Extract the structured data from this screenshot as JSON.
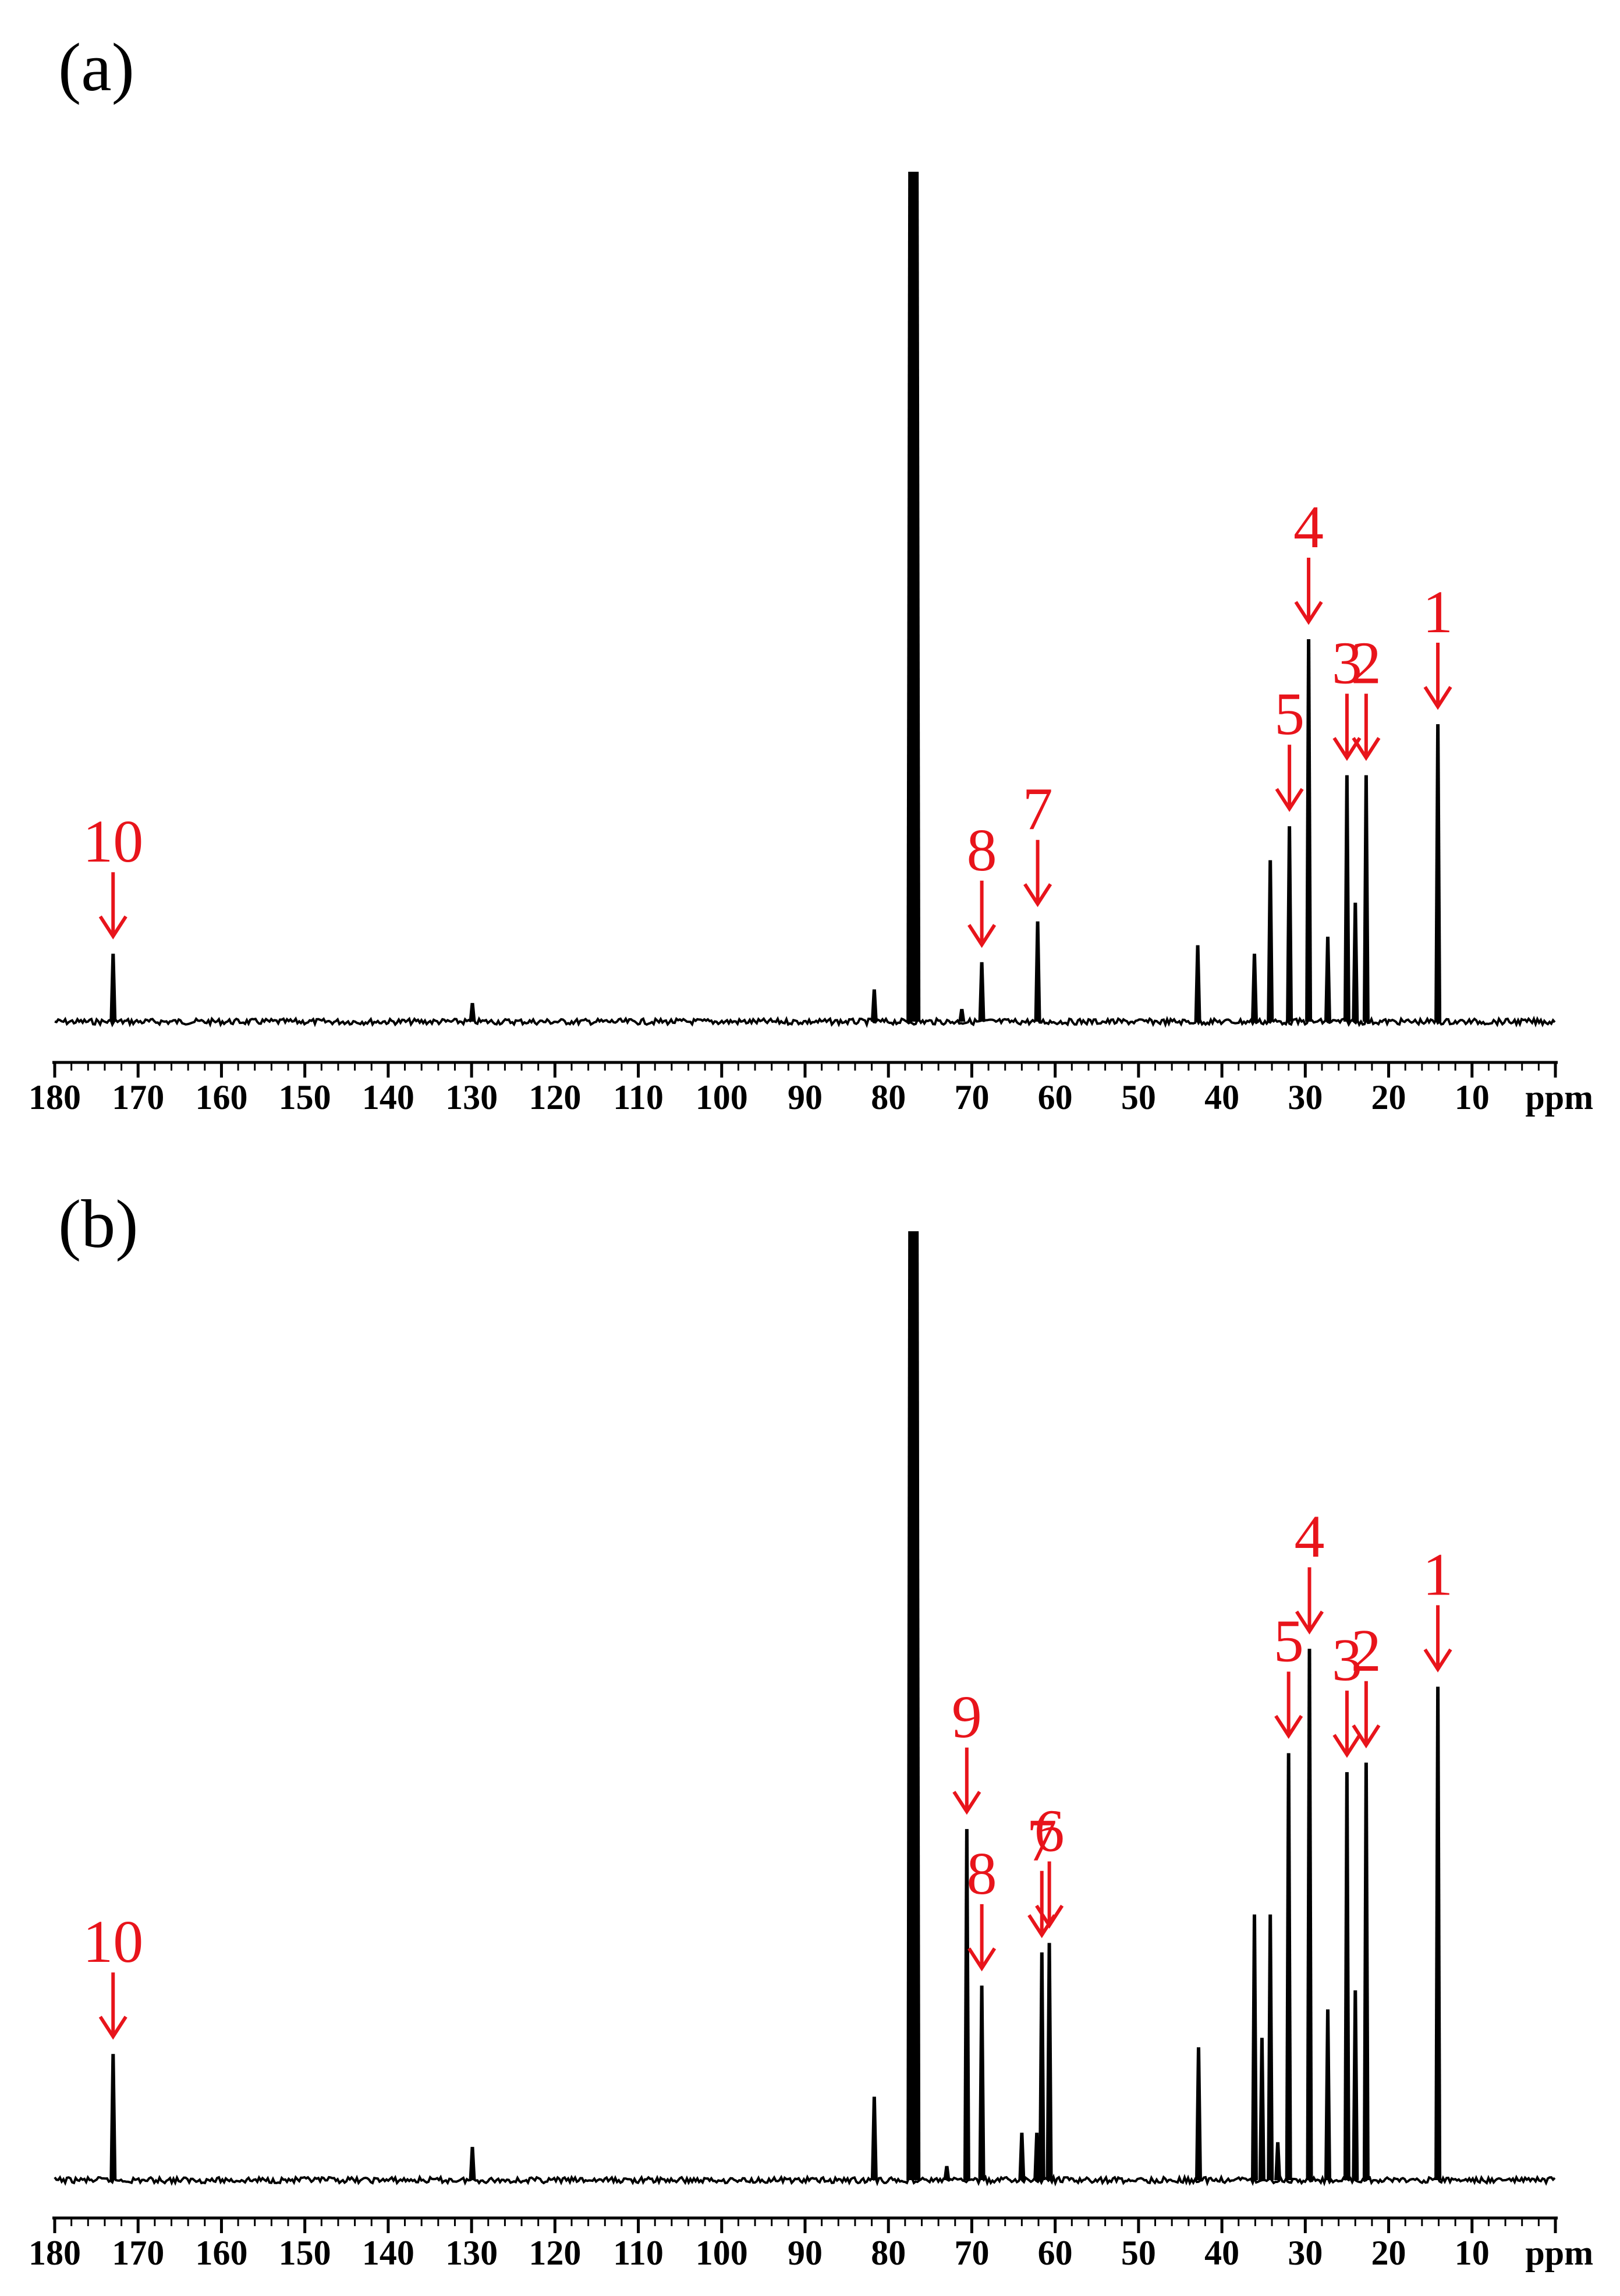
{
  "figure": {
    "colors": {
      "spectrum": "#000000",
      "annotation": "#e8141b",
      "background": "#ffffff"
    }
  },
  "chart_data": [
    {
      "type": "line",
      "panel_label": "(a)",
      "xlabel": "ppm",
      "x_reversed": true,
      "xlim": [
        180,
        0
      ],
      "x_ticks": [
        180,
        170,
        160,
        150,
        140,
        130,
        120,
        110,
        100,
        90,
        80,
        70,
        60,
        50,
        40,
        30,
        20,
        10
      ],
      "x_tick_labels": [
        "180",
        "170",
        "160",
        "150",
        "140",
        "130",
        "120",
        "110",
        "100",
        "90",
        "80",
        "70",
        "60",
        "50",
        "40",
        "30",
        "20",
        "10"
      ],
      "grid": false,
      "legend": false,
      "peaks": [
        {
          "x": 173.0,
          "y": 0.08
        },
        {
          "x": 129.9,
          "y": 0.022
        },
        {
          "x": 81.7,
          "y": 0.038
        },
        {
          "x": 77.0,
          "y": 1.0
        },
        {
          "x": 71.2,
          "y": 0.015
        },
        {
          "x": 68.8,
          "y": 0.07
        },
        {
          "x": 62.1,
          "y": 0.118
        },
        {
          "x": 42.9,
          "y": 0.09
        },
        {
          "x": 36.1,
          "y": 0.08
        },
        {
          "x": 34.2,
          "y": 0.19
        },
        {
          "x": 31.9,
          "y": 0.23
        },
        {
          "x": 29.6,
          "y": 0.45
        },
        {
          "x": 27.3,
          "y": 0.1
        },
        {
          "x": 25.0,
          "y": 0.29
        },
        {
          "x": 24.0,
          "y": 0.14
        },
        {
          "x": 22.7,
          "y": 0.29
        },
        {
          "x": 14.1,
          "y": 0.35
        }
      ],
      "annotations": [
        {
          "label": "1",
          "peak_x": 14.1
        },
        {
          "label": "2",
          "peak_x": 22.7
        },
        {
          "label": "3",
          "peak_x": 25.0
        },
        {
          "label": "4",
          "peak_x": 29.6
        },
        {
          "label": "5",
          "peak_x": 31.9
        },
        {
          "label": "7",
          "peak_x": 62.1
        },
        {
          "label": "8",
          "peak_x": 68.8
        },
        {
          "label": "10",
          "peak_x": 173.0
        }
      ]
    },
    {
      "type": "line",
      "panel_label": "(b)",
      "xlabel": "ppm",
      "x_reversed": true,
      "xlim": [
        180,
        0
      ],
      "x_ticks": [
        180,
        170,
        160,
        150,
        140,
        130,
        120,
        110,
        100,
        90,
        80,
        70,
        60,
        50,
        40,
        30,
        20,
        10
      ],
      "x_tick_labels": [
        "180",
        "170",
        "160",
        "150",
        "140",
        "130",
        "120",
        "110",
        "100",
        "90",
        "80",
        "70",
        "60",
        "50",
        "40",
        "30",
        "20",
        "10"
      ],
      "grid": false,
      "legend": false,
      "peaks": [
        {
          "x": 173.0,
          "y": 0.133
        },
        {
          "x": 129.9,
          "y": 0.035
        },
        {
          "x": 81.7,
          "y": 0.088
        },
        {
          "x": 77.0,
          "y": 1.0
        },
        {
          "x": 73.0,
          "y": 0.015
        },
        {
          "x": 70.6,
          "y": 0.37
        },
        {
          "x": 68.8,
          "y": 0.205
        },
        {
          "x": 64.0,
          "y": 0.05
        },
        {
          "x": 62.2,
          "y": 0.05
        },
        {
          "x": 61.6,
          "y": 0.24
        },
        {
          "x": 60.7,
          "y": 0.25
        },
        {
          "x": 42.8,
          "y": 0.14
        },
        {
          "x": 36.1,
          "y": 0.28
        },
        {
          "x": 35.2,
          "y": 0.15
        },
        {
          "x": 34.2,
          "y": 0.28
        },
        {
          "x": 33.3,
          "y": 0.04
        },
        {
          "x": 32.0,
          "y": 0.45
        },
        {
          "x": 29.5,
          "y": 0.56
        },
        {
          "x": 27.3,
          "y": 0.18
        },
        {
          "x": 25.0,
          "y": 0.43
        },
        {
          "x": 24.0,
          "y": 0.2
        },
        {
          "x": 22.7,
          "y": 0.44
        },
        {
          "x": 14.1,
          "y": 0.52
        }
      ],
      "annotations": [
        {
          "label": "1",
          "peak_x": 14.1
        },
        {
          "label": "2",
          "peak_x": 22.7
        },
        {
          "label": "3",
          "peak_x": 25.0
        },
        {
          "label": "4",
          "peak_x": 29.5
        },
        {
          "label": "5",
          "peak_x": 32.0
        },
        {
          "label": "6",
          "peak_x": 60.7
        },
        {
          "label": "7",
          "peak_x": 61.6
        },
        {
          "label": "8",
          "peak_x": 68.8
        },
        {
          "label": "9",
          "peak_x": 70.6
        },
        {
          "label": "10",
          "peak_x": 173.0
        }
      ]
    }
  ]
}
